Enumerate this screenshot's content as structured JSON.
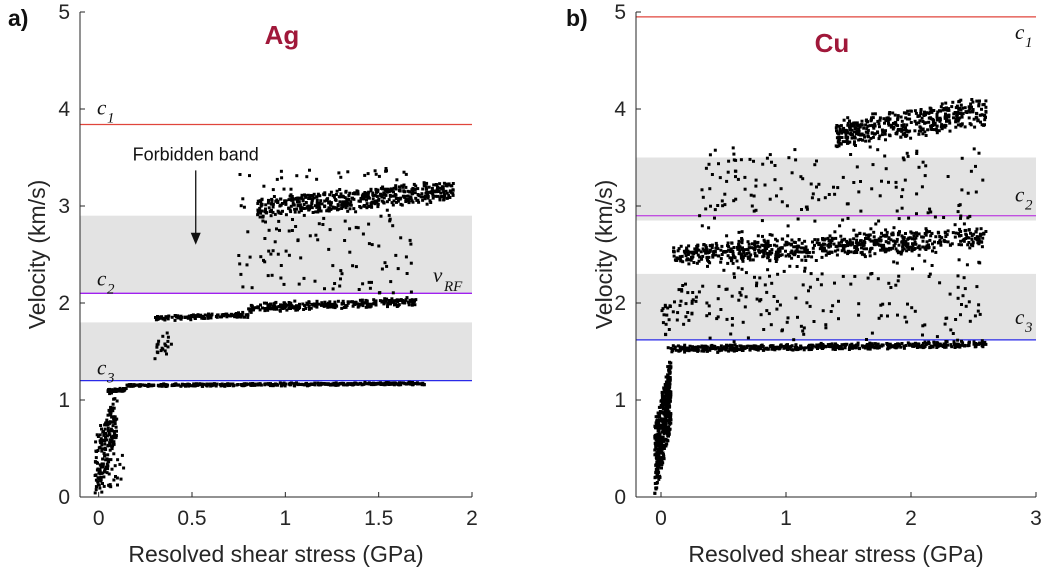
{
  "chart_data": [
    {
      "type": "scatter",
      "panel_label": "a)",
      "title": "Ag",
      "xlabel": "Resolved shear stress (GPa)",
      "ylabel": "Velocity (km/s)",
      "xlim": [
        -0.1,
        2.0
      ],
      "ylim": [
        0,
        5
      ],
      "xticks": [
        "0",
        "0.5",
        "1",
        "1.5",
        "2"
      ],
      "yticks": [
        "0",
        "1",
        "2",
        "3",
        "4",
        "5"
      ],
      "grid": false,
      "band_color": "#e3e3e3",
      "point_color": "#000000",
      "bands": [
        {
          "y0": 1.2,
          "y1": 1.8
        },
        {
          "y0": 2.1,
          "y1": 2.9
        }
      ],
      "lines": [
        {
          "label": "c",
          "sub": "1",
          "y": 3.84,
          "color": "#e0453c"
        },
        {
          "label": "c",
          "sub": "2",
          "y": 2.1,
          "color": "#a020f0"
        },
        {
          "label": "c",
          "sub": "3",
          "y": 1.2,
          "color": "#2a2ae8"
        }
      ],
      "extra_labels": [
        {
          "label": "v",
          "sub": "RF"
        }
      ],
      "annotation": {
        "text": "Forbidden band",
        "x": 0.52,
        "y": 3.47,
        "arrow_to_x": 0.52,
        "arrow_to_y": 2.6
      },
      "clusters": [
        {
          "x0": -0.02,
          "x1": 0.1,
          "y0": 0.0,
          "y1": 1.1,
          "n": 160,
          "jitter": 0.09
        },
        {
          "x0": 0.05,
          "x1": 0.15,
          "y0": 1.08,
          "y1": 1.12,
          "n": 50,
          "jitter": 0.03
        },
        {
          "x0": 0.15,
          "x1": 1.75,
          "y0": 1.14,
          "y1": 1.18,
          "n": 420,
          "jitter": 0.015
        },
        {
          "x0": 0.3,
          "x1": 0.8,
          "y0": 1.82,
          "y1": 1.9,
          "n": 120,
          "jitter": 0.03
        },
        {
          "x0": 0.8,
          "x1": 1.7,
          "y0": 1.92,
          "y1": 2.05,
          "n": 260,
          "jitter": 0.04
        },
        {
          "x0": 0.85,
          "x1": 1.9,
          "y0": 2.88,
          "y1": 3.25,
          "n": 480,
          "jitter": 0.05
        },
        {
          "x0": 0.75,
          "x1": 1.7,
          "y0": 2.1,
          "y1": 3.4,
          "n": 150,
          "jitter": 0.3
        },
        {
          "x0": 0.3,
          "x1": 0.4,
          "y0": 1.35,
          "y1": 1.8,
          "n": 20,
          "jitter": 0.1
        },
        {
          "x0": 0.0,
          "x1": 0.15,
          "y0": 0.0,
          "y1": 0.5,
          "n": 30,
          "jitter": 0.12
        }
      ]
    },
    {
      "type": "scatter",
      "panel_label": "b)",
      "title": "Cu",
      "xlabel": "Resolved shear stress (GPa)",
      "ylabel": "Velocity (km/s)",
      "xlim": [
        -0.2,
        3.0
      ],
      "ylim": [
        0,
        5
      ],
      "xticks": [
        "0",
        "1",
        "2",
        "3"
      ],
      "yticks": [
        "0",
        "1",
        "2",
        "3",
        "4",
        "5"
      ],
      "grid": false,
      "band_color": "#e3e3e3",
      "point_color": "#000000",
      "bands": [
        {
          "y0": 1.62,
          "y1": 2.3
        },
        {
          "y0": 2.85,
          "y1": 3.5
        }
      ],
      "lines": [
        {
          "label": "c",
          "sub": "1",
          "y": 4.95,
          "color": "#e0453c"
        },
        {
          "label": "c",
          "sub": "2",
          "y": 2.9,
          "color": "#c050e0"
        },
        {
          "label": "c",
          "sub": "3",
          "y": 1.62,
          "color": "#2a2ae8"
        }
      ],
      "clusters": [
        {
          "x0": -0.05,
          "x1": 0.08,
          "y0": 0.0,
          "y1": 1.45,
          "n": 420,
          "jitter": 0.1
        },
        {
          "x0": 0.05,
          "x1": 2.6,
          "y0": 1.5,
          "y1": 1.6,
          "n": 520,
          "jitter": 0.03
        },
        {
          "x0": 0.1,
          "x1": 2.6,
          "y0": 2.4,
          "y1": 2.78,
          "n": 650,
          "jitter": 0.06
        },
        {
          "x0": 1.4,
          "x1": 2.6,
          "y0": 3.6,
          "y1": 4.1,
          "n": 420,
          "jitter": 0.1
        },
        {
          "x0": 0.3,
          "x1": 2.6,
          "y0": 1.6,
          "y1": 3.6,
          "n": 380,
          "jitter": 0.4
        },
        {
          "x0": 0.0,
          "x1": 0.3,
          "y0": 1.5,
          "y1": 2.4,
          "n": 40,
          "jitter": 0.2
        }
      ]
    }
  ]
}
